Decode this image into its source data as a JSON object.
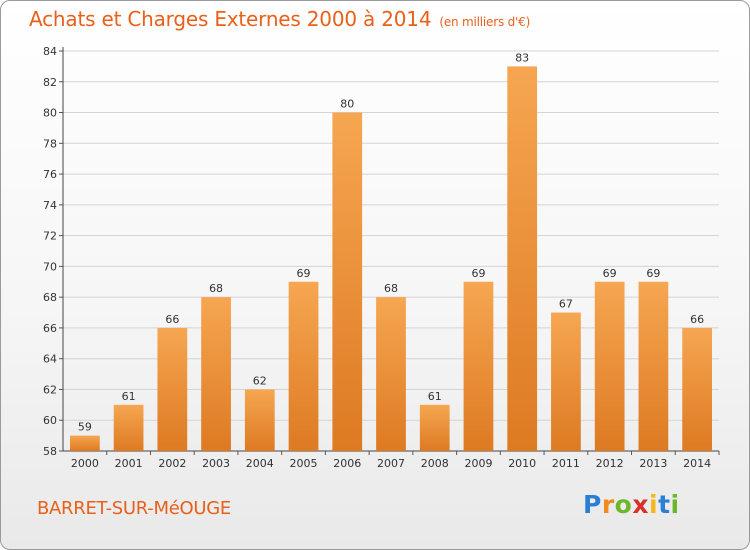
{
  "header": {
    "title": "Achats et Charges Externes 2000 à 2014",
    "subtitle": "(en milliers d'€)"
  },
  "footer": {
    "place": "BARRET-SUR-MéOUGE",
    "logo_letters": [
      "P",
      "r",
      "o",
      "x",
      "i",
      "t",
      "i"
    ],
    "logo_colors": [
      "#2a7fd4",
      "#f08a1c",
      "#6bb82a",
      "#d8302a",
      "#f3b81a",
      "#2a7fd4",
      "#6bb82a"
    ]
  },
  "colors": {
    "bar_light": "#f6a651",
    "bar_dark": "#dd7a22",
    "accent": "#e8601a",
    "grid": "#d4d4d4"
  },
  "chart_data": {
    "type": "bar",
    "title": "Achats et Charges Externes 2000 à 2014",
    "subtitle": "(en milliers d'€)",
    "categories": [
      "2000",
      "2001",
      "2002",
      "2003",
      "2004",
      "2005",
      "2006",
      "2007",
      "2008",
      "2009",
      "2010",
      "2011",
      "2012",
      "2013",
      "2014"
    ],
    "values": [
      59,
      61,
      66,
      68,
      62,
      69,
      80,
      68,
      61,
      69,
      83,
      67,
      69,
      69,
      66
    ],
    "ylim": [
      58,
      84
    ],
    "yticks": [
      58,
      60,
      62,
      64,
      66,
      68,
      70,
      72,
      74,
      76,
      78,
      80,
      82,
      84
    ],
    "grid": true,
    "legend": "none"
  }
}
